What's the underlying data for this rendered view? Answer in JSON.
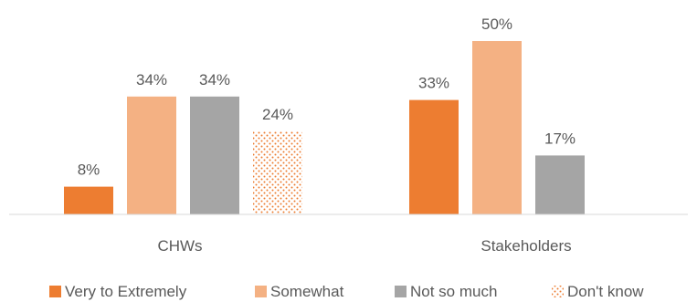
{
  "chart_data": {
    "type": "bar",
    "categories": [
      "CHWs",
      "Stakeholders"
    ],
    "series": [
      {
        "name": "Very to Extremely",
        "values": [
          8,
          33
        ],
        "labels": [
          "8%",
          "33%"
        ],
        "color": "#ED7D31",
        "pattern": "solid"
      },
      {
        "name": "Somewhat",
        "values": [
          34,
          50
        ],
        "labels": [
          "34%",
          "50%"
        ],
        "color": "#F4B183",
        "pattern": "solid"
      },
      {
        "name": "Not so much",
        "values": [
          34,
          17
        ],
        "labels": [
          "34%",
          "17%"
        ],
        "color": "#A5A5A5",
        "pattern": "solid"
      },
      {
        "name": "Don't know",
        "values": [
          24,
          null
        ],
        "labels": [
          "24%",
          null
        ],
        "color": "#ED7D31",
        "pattern": "dotted"
      }
    ],
    "title": "",
    "xlabel": "",
    "ylabel": "",
    "ylim": [
      0,
      55
    ],
    "grid": false,
    "legend_position": "bottom"
  }
}
